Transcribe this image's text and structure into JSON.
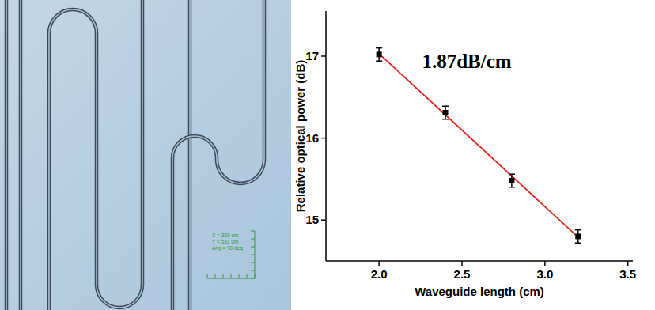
{
  "chart_data": {
    "type": "scatter",
    "x_label": "Waveguide length (cm)",
    "y_label": "Relative optical power (dB)",
    "annotation": "1.87dB/cm",
    "xlim": [
      1.68,
      3.53
    ],
    "ylim": [
      14.5,
      17.55
    ],
    "xticks": [
      {
        "value": 2.0,
        "label": "2.0"
      },
      {
        "value": 2.5,
        "label": "2.5"
      },
      {
        "value": 3.0,
        "label": "3.0"
      },
      {
        "value": 3.5,
        "label": "3.5"
      }
    ],
    "yticks": [
      15,
      16,
      17
    ],
    "grid": false,
    "series": [
      {
        "type": "scatter",
        "color": "#000000",
        "marker": "square",
        "x": [
          2.0,
          2.4,
          2.8,
          3.2
        ],
        "values": [
          17.02,
          16.31,
          15.48,
          14.8
        ],
        "errors": [
          0.08,
          0.08,
          0.08,
          0.08
        ]
      },
      {
        "type": "line",
        "color": "#e3241b",
        "line_style": "solid",
        "x": [
          2.0,
          3.2
        ],
        "values": [
          17.03,
          14.79
        ]
      }
    ]
  },
  "micrograph": {
    "scale_bar_lines": [
      "X = 330 um",
      "Y = 531 um",
      "Ang = 90 deg"
    ]
  }
}
